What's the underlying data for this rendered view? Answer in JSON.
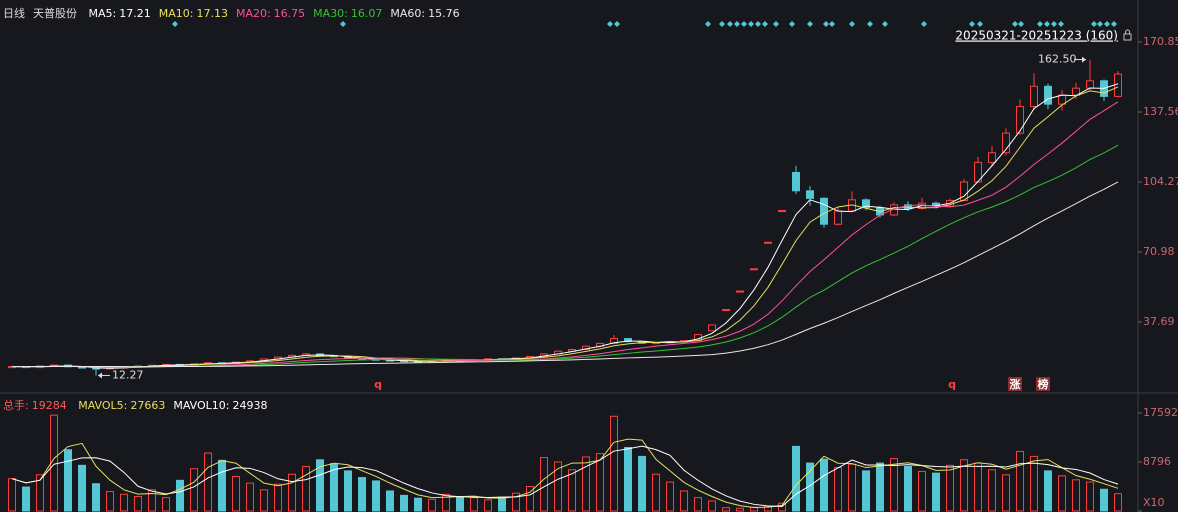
{
  "chart_data": [
    {
      "type": "candlestick",
      "period": "日线",
      "stock_name": "天普股份",
      "date_range": "20250321-20251223 (160)",
      "ylim": [
        4.4,
        183.7
      ],
      "yticks": [
        37.69,
        70.98,
        104.27,
        137.56,
        170.85
      ],
      "up_color": "#ff3c3c",
      "down_color": "#54c6d4",
      "high_label": {
        "value": 162.5,
        "label": "162.50"
      },
      "low_label": {
        "value": 12.27,
        "label": "12.27"
      },
      "markers": [
        "q",
        "q",
        "涨",
        "榜"
      ],
      "candles": [
        [
          16.0,
          16.9,
          15.8,
          16.5
        ],
        [
          16.5,
          16.7,
          15.8,
          16.0
        ],
        [
          16.0,
          17.0,
          15.9,
          16.8
        ],
        [
          16.8,
          17.5,
          16.6,
          17.2
        ],
        [
          17.2,
          17.3,
          16.2,
          16.4
        ],
        [
          16.4,
          16.5,
          15.6,
          15.8
        ],
        [
          15.8,
          16.0,
          12.27,
          15.5
        ],
        [
          15.5,
          16.1,
          15.4,
          15.9
        ],
        [
          15.9,
          16.5,
          15.7,
          16.3
        ],
        [
          16.3,
          17.0,
          16.2,
          16.8
        ],
        [
          16.8,
          17.3,
          16.6,
          17.1
        ],
        [
          17.1,
          17.8,
          17.0,
          17.5
        ],
        [
          17.5,
          17.6,
          17.0,
          17.2
        ],
        [
          17.2,
          18.0,
          17.1,
          17.8
        ],
        [
          17.8,
          18.6,
          17.7,
          18.3
        ],
        [
          18.3,
          18.5,
          17.8,
          18.0
        ],
        [
          18.0,
          18.9,
          17.9,
          18.6
        ],
        [
          18.6,
          19.5,
          18.5,
          19.2
        ],
        [
          19.2,
          20.4,
          19.1,
          20.1
        ],
        [
          20.1,
          21.3,
          20.0,
          21.0
        ],
        [
          21.0,
          22.2,
          20.8,
          21.8
        ],
        [
          21.8,
          23.0,
          21.6,
          22.5
        ],
        [
          22.5,
          22.8,
          21.5,
          21.7
        ],
        [
          21.7,
          22.0,
          21.0,
          21.2
        ],
        [
          21.2,
          21.4,
          20.3,
          20.5
        ],
        [
          20.5,
          20.7,
          19.8,
          20.0
        ],
        [
          20.0,
          20.3,
          19.4,
          19.6
        ],
        [
          19.6,
          19.9,
          19.1,
          19.3
        ],
        [
          19.3,
          19.5,
          18.8,
          19.0
        ],
        [
          19.0,
          19.2,
          18.6,
          18.8
        ],
        [
          18.8,
          19.4,
          18.7,
          19.2
        ],
        [
          19.2,
          19.7,
          19.0,
          19.5
        ],
        [
          19.5,
          19.6,
          19.1,
          19.3
        ],
        [
          19.3,
          20.0,
          19.2,
          19.8
        ],
        [
          19.8,
          20.4,
          19.7,
          20.2
        ],
        [
          20.2,
          20.3,
          19.8,
          20.0
        ],
        [
          20.0,
          20.8,
          19.9,
          20.6
        ],
        [
          20.6,
          21.5,
          20.5,
          21.3
        ],
        [
          21.3,
          22.8,
          21.2,
          22.5
        ],
        [
          22.5,
          24.1,
          22.3,
          23.8
        ],
        [
          23.8,
          24.9,
          23.5,
          24.6
        ],
        [
          24.6,
          26.5,
          24.4,
          26.2
        ],
        [
          26.2,
          27.9,
          26.0,
          27.5
        ],
        [
          27.5,
          31.5,
          27.3,
          29.8
        ],
        [
          29.8,
          30.1,
          28.0,
          28.4
        ],
        [
          28.4,
          28.6,
          27.2,
          27.6
        ],
        [
          27.6,
          28.2,
          27.4,
          27.9
        ],
        [
          27.9,
          28.6,
          27.7,
          28.3
        ],
        [
          28.3,
          29.1,
          28.1,
          28.8
        ],
        [
          28.8,
          31.7,
          28.6,
          31.7
        ],
        [
          33.5,
          36.3,
          33.2,
          36.3
        ],
        [
          43.6,
          43.6,
          43.6,
          43.6
        ],
        [
          52.4,
          52.4,
          52.4,
          52.4
        ],
        [
          63.0,
          63.0,
          63.0,
          63.0
        ],
        [
          75.6,
          75.6,
          75.6,
          75.6
        ],
        [
          90.7,
          90.7,
          90.7,
          90.7
        ],
        [
          108.8,
          112.0,
          98.5,
          100.1
        ],
        [
          100.1,
          102.3,
          93.0,
          96.5
        ],
        [
          96.5,
          97.0,
          82.5,
          84.2
        ],
        [
          84.2,
          92.0,
          83.6,
          90.5
        ],
        [
          90.5,
          99.8,
          89.9,
          95.8
        ],
        [
          95.8,
          96.5,
          90.8,
          92.1
        ],
        [
          92.1,
          93.0,
          87.4,
          88.6
        ],
        [
          88.6,
          94.6,
          88.0,
          93.4
        ],
        [
          93.4,
          95.2,
          90.5,
          91.7
        ],
        [
          91.7,
          96.8,
          91.0,
          94.2
        ],
        [
          94.2,
          95.0,
          91.6,
          92.8
        ],
        [
          92.8,
          96.3,
          92.0,
          95.5
        ],
        [
          95.5,
          105.8,
          95.0,
          104.3
        ],
        [
          104.3,
          116.2,
          103.8,
          113.6
        ],
        [
          113.6,
          121.5,
          112.0,
          118.2
        ],
        [
          118.2,
          129.8,
          117.0,
          127.5
        ],
        [
          127.5,
          143.6,
          126.8,
          140.2
        ],
        [
          140.2,
          156.0,
          138.5,
          149.8
        ],
        [
          149.8,
          151.2,
          139.0,
          141.3
        ],
        [
          141.3,
          148.0,
          138.2,
          145.6
        ],
        [
          145.6,
          151.5,
          143.8,
          148.9
        ],
        [
          148.9,
          162.5,
          147.5,
          152.4
        ],
        [
          152.4,
          153.0,
          142.8,
          145.0
        ],
        [
          145.0,
          157.0,
          144.5,
          155.6
        ]
      ],
      "ma_series": [
        {
          "name": "MA5:",
          "value": 17.21,
          "color": "#ffffff",
          "values": [
            16.5,
            16.3,
            16.4,
            16.7,
            16.8,
            16.5,
            15.9,
            15.7,
            15.9,
            16.3,
            16.7,
            17.1,
            17.3,
            17.5,
            17.8,
            18.0,
            18.3,
            18.6,
            19.3,
            20.1,
            21.0,
            21.8,
            22.0,
            21.8,
            21.1,
            20.6,
            20.0,
            19.6,
            19.3,
            19.0,
            19.0,
            19.2,
            19.3,
            19.5,
            19.8,
            20.0,
            20.3,
            20.6,
            21.5,
            22.5,
            23.6,
            24.9,
            26.1,
            27.8,
            28.6,
            28.6,
            28.0,
            27.9,
            28.3,
            29.6,
            32.3,
            37.2,
            44.1,
            53.0,
            63.7,
            76.4,
            88.8,
            95.8,
            93.6,
            90.4,
            90.2,
            92.8,
            92.2,
            91.4,
            91.2,
            93.1,
            92.9,
            94.2,
            97.5,
            104.5,
            112.0,
            119.8,
            128.6,
            139.2,
            143.8,
            145.6,
            145.3,
            149.0,
            148.8,
            151.0
          ]
        },
        {
          "name": "MA10:",
          "value": 17.13,
          "color": "#e6e05a",
          "values": [
            16.5,
            16.3,
            16.4,
            16.6,
            16.6,
            16.4,
            16.3,
            16.2,
            16.0,
            16.1,
            16.3,
            16.7,
            17.0,
            17.3,
            17.6,
            17.8,
            18.0,
            18.4,
            18.8,
            19.4,
            20.1,
            20.9,
            21.4,
            21.6,
            21.5,
            21.2,
            20.6,
            20.1,
            19.7,
            19.3,
            19.2,
            19.2,
            19.2,
            19.3,
            19.6,
            19.8,
            20.0,
            20.4,
            20.9,
            21.6,
            22.6,
            23.7,
            24.9,
            26.4,
            27.3,
            27.9,
            28.0,
            28.4,
            28.2,
            28.9,
            30.6,
            33.7,
            38.6,
            45.4,
            54.2,
            65.1,
            76.4,
            85.2,
            89.4,
            92.4,
            93.4,
            91.8,
            90.2,
            92.1,
            92.3,
            92.0,
            92.1,
            93.5,
            95.7,
            99.9,
            104.9,
            111.8,
            120.8,
            129.9,
            135.3,
            140.9,
            145.2,
            147.6,
            146.6,
            149.5
          ]
        },
        {
          "name": "MA20:",
          "value": 16.75,
          "color": "#ff4f9a",
          "values": [
            16.5,
            16.4,
            16.4,
            16.5,
            16.6,
            16.5,
            16.4,
            16.3,
            16.3,
            16.3,
            16.3,
            16.4,
            16.5,
            16.6,
            16.8,
            17.1,
            17.3,
            17.6,
            18.0,
            18.4,
            18.9,
            19.4,
            19.8,
            20.1,
            20.3,
            20.5,
            20.6,
            20.6,
            20.5,
            20.3,
            20.0,
            19.7,
            19.5,
            19.4,
            19.4,
            19.5,
            19.6,
            19.8,
            20.1,
            20.6,
            21.1,
            21.8,
            22.6,
            23.6,
            24.6,
            25.4,
            26.2,
            26.9,
            27.5,
            28.1,
            29.3,
            30.9,
            33.3,
            36.7,
            41.4,
            47.7,
            54.9,
            61.7,
            67.3,
            73.2,
            79.1,
            84.0,
            88.5,
            91.5,
            93.1,
            93.4,
            92.6,
            92.5,
            93.3,
            95.6,
            98.0,
            101.8,
            107.0,
            112.6,
            117.6,
            122.8,
            128.4,
            134.1,
            138.2,
            142.4
          ]
        },
        {
          "name": "MA30:",
          "value": 16.07,
          "color": "#34c234",
          "values": [
            16.5,
            16.4,
            16.4,
            16.5,
            16.5,
            16.5,
            16.4,
            16.4,
            16.4,
            16.4,
            16.4,
            16.5,
            16.5,
            16.6,
            16.7,
            16.8,
            16.9,
            17.1,
            17.4,
            17.7,
            18.1,
            18.5,
            18.8,
            19.1,
            19.4,
            19.6,
            19.8,
            19.9,
            20.0,
            20.1,
            20.1,
            20.0,
            19.9,
            19.8,
            19.7,
            19.6,
            19.6,
            19.7,
            19.9,
            20.1,
            20.5,
            20.9,
            21.5,
            22.2,
            22.8,
            23.4,
            23.9,
            24.5,
            25.1,
            25.8,
            26.8,
            28.2,
            30.1,
            32.6,
            35.8,
            39.9,
            44.8,
            49.4,
            52.8,
            56.9,
            61.0,
            64.4,
            67.4,
            70.5,
            73.7,
            77.4,
            80.8,
            84.2,
            87.3,
            90.1,
            92.4,
            95.0,
            98.1,
            101.7,
            104.5,
            107.5,
            111.0,
            115.0,
            118.1,
            121.8
          ]
        },
        {
          "name": "MA60:",
          "value": 15.76,
          "color": "#e8e8e8",
          "values": [
            16.5,
            16.5,
            16.5,
            16.5,
            16.5,
            16.5,
            16.5,
            16.5,
            16.5,
            16.4,
            16.4,
            16.5,
            16.5,
            16.5,
            16.6,
            16.6,
            16.7,
            16.8,
            16.9,
            17.0,
            17.1,
            17.3,
            17.5,
            17.6,
            17.8,
            17.9,
            18.0,
            18.1,
            18.2,
            18.3,
            18.4,
            18.5,
            18.6,
            18.7,
            18.8,
            18.9,
            19.0,
            19.2,
            19.4,
            19.5,
            19.7,
            19.9,
            20.1,
            20.4,
            20.6,
            20.8,
            21.0,
            21.2,
            21.5,
            21.8,
            22.2,
            22.9,
            23.9,
            25.2,
            26.9,
            29.1,
            31.8,
            34.6,
            37.1,
            39.8,
            42.7,
            45.5,
            48.3,
            51.3,
            54.2,
            57.0,
            59.9,
            62.8,
            65.9,
            69.3,
            72.6,
            76.0,
            79.6,
            83.5,
            87.1,
            90.5,
            94.0,
            97.6,
            100.8,
            104.3
          ]
        }
      ]
    },
    {
      "type": "bar",
      "name": "总手:",
      "value": 19284,
      "ylim": [
        0,
        19925
      ],
      "yticks": [
        17592,
        8796,
        {
          "value": 0,
          "label": "X10"
        }
      ],
      "values": [
        5800,
        4300,
        6500,
        17200,
        11000,
        8200,
        4900,
        3500,
        3000,
        2600,
        3800,
        2400,
        5500,
        7600,
        10400,
        9100,
        6200,
        5000,
        3800,
        4800,
        6600,
        8000,
        9200,
        8500,
        7200,
        6000,
        5400,
        3600,
        2800,
        2300,
        2100,
        3000,
        2600,
        2400,
        2000,
        2500,
        3200,
        4400,
        9600,
        8800,
        7400,
        9700,
        10300,
        17000,
        11400,
        9800,
        6600,
        5200,
        3600,
        2400,
        1800,
        600,
        500,
        700,
        900,
        1400,
        11600,
        8600,
        9300,
        7800,
        8400,
        7200,
        8600,
        9400,
        8000,
        7100,
        6800,
        8200,
        9200,
        8600,
        7400,
        6500,
        10700,
        9800,
        7200,
        6300,
        5600,
        5200,
        3900,
        3100
      ],
      "series": [
        {
          "name": "MAVOL5:",
          "value": 27663,
          "color": "#e6e05a",
          "values": [
            5800,
            5050,
            5530,
            9430,
            11570,
            12130,
            8030,
            5530,
            3800,
            3030,
            3130,
            2930,
            3900,
            5170,
            7830,
            9030,
            8570,
            6770,
            5000,
            4530,
            5070,
            6470,
            7930,
            8570,
            8300,
            7230,
            6200,
            5000,
            3930,
            2900,
            2400,
            2470,
            2570,
            2670,
            2330,
            2300,
            2570,
            3370,
            5730,
            7600,
            8600,
            8630,
            9130,
            12330,
            12900,
            12730,
            9270,
            7200,
            5130,
            3730,
            2600,
            1600,
            970,
            600,
            700,
            1000,
            4630,
            7200,
            9830,
            8570,
            8500,
            7800,
            8070,
            8400,
            8670,
            8170,
            7300,
            7370,
            8070,
            8670,
            8400,
            7500,
            8200,
            9000,
            9230,
            7770,
            6370,
            5700,
            4900,
            4070
          ]
        },
        {
          "name": "MAVOL10:",
          "value": 24938,
          "color": "#ffffff",
          "values": [
            5800,
            5050,
            5530,
            8400,
            8940,
            9540,
            9560,
            8960,
            6920,
            4440,
            3560,
            3060,
            3460,
            4340,
            5940,
            7000,
            7760,
            7660,
            6900,
            5780,
            5280,
            5640,
            6480,
            7420,
            7900,
            7780,
            7260,
            6140,
            5000,
            4020,
            3240,
            2760,
            2560,
            2480,
            2420,
            2500,
            2540,
            2900,
            4340,
            5700,
            6680,
            7980,
            9160,
            10760,
            11160,
            11640,
            11020,
            10000,
            7320,
            5520,
            3960,
            2720,
            1780,
            1200,
            900,
            820,
            3020,
            4560,
            6360,
            7740,
            9140,
            8260,
            8260,
            8160,
            8320,
            8140,
            7980,
            7900,
            8060,
            8000,
            8040,
            7900,
            8480,
            8600,
            8320,
            7740,
            7460,
            6820,
            5640,
            4820
          ]
        }
      ]
    }
  ]
}
